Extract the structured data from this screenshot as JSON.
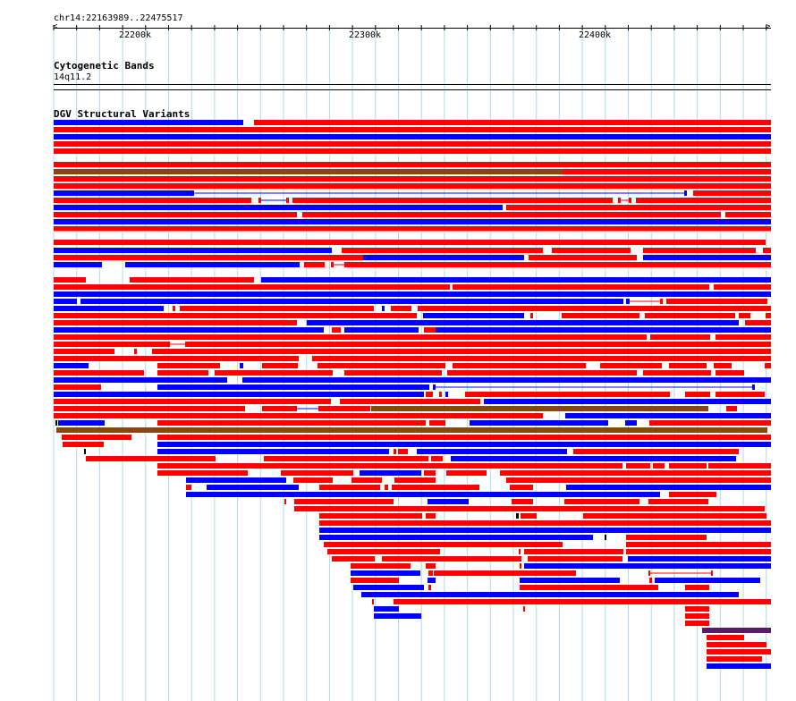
{
  "location": "chr14:22163989..22475517",
  "ruler": {
    "labels": [
      "22200k",
      "22300k",
      "22400k"
    ]
  },
  "cytoband_track": {
    "title": "Cytogenetic Bands",
    "band": "14q11.2"
  },
  "dgv_track": {
    "title": "DGV Structural Variants"
  },
  "colors": {
    "loss": "#ff0000",
    "gain": "#0000ff",
    "inversion": "#8b4513",
    "complex": "#5a1a6e",
    "grid": "#a8dcea",
    "ruler": "#000000"
  }
}
